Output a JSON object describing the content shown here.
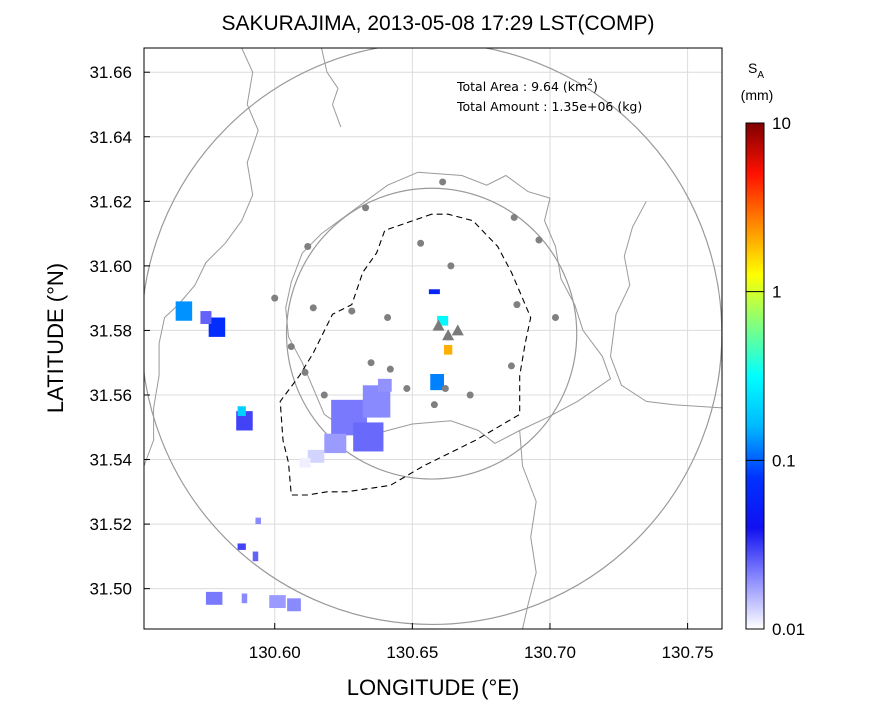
{
  "title": "SAKURAJIMA, 2013-05-08 17:29 LST(COMP)",
  "info": {
    "area_label": "Total Area   : 9.64 (km",
    "area_sup": "2",
    "area_close": ")",
    "amount_label": "Total Amount : 1.35e+06 (kg)"
  },
  "axes": {
    "xlabel": "LONGITUDE (°E)",
    "ylabel": "LATITUDE (°N)",
    "xlim": [
      130.5525,
      130.7625
    ],
    "ylim": [
      31.4875,
      31.6675
    ],
    "xticks": [
      {
        "value": 130.6,
        "label": "130.60"
      },
      {
        "value": 130.65,
        "label": "130.65"
      },
      {
        "value": 130.7,
        "label": "130.70"
      },
      {
        "value": 130.75,
        "label": "130.75"
      }
    ],
    "yticks": [
      {
        "value": 31.5,
        "label": "31.50"
      },
      {
        "value": 31.52,
        "label": "31.52"
      },
      {
        "value": 31.54,
        "label": "31.54"
      },
      {
        "value": 31.56,
        "label": "31.56"
      },
      {
        "value": 31.58,
        "label": "31.58"
      },
      {
        "value": 31.6,
        "label": "31.60"
      },
      {
        "value": 31.62,
        "label": "31.62"
      },
      {
        "value": 31.64,
        "label": "31.64"
      },
      {
        "value": 31.66,
        "label": "31.66"
      }
    ],
    "grid": true
  },
  "colorbar": {
    "symbol": "S",
    "subscript": "A",
    "unit": "(mm)",
    "scale": "log",
    "range": [
      0.01,
      10
    ],
    "ticks": [
      {
        "value": 10,
        "label": "10"
      },
      {
        "value": 1,
        "label": "1"
      },
      {
        "value": 0.1,
        "label": "0.1"
      },
      {
        "value": 0.01,
        "label": "0.01"
      }
    ],
    "colors": [
      "#ffffff",
      "#8a8aff",
      "#1010f0",
      "#0033ff",
      "#00b8ff",
      "#00ffff",
      "#80ff80",
      "#ffff00",
      "#ff8800",
      "#ff1100",
      "#800000"
    ]
  },
  "map_data": {
    "radar_center": [
      130.657,
      31.579
    ],
    "range_rings_km": [
      5,
      10
    ],
    "stations": [
      [
        130.661,
        31.626
      ],
      [
        130.633,
        31.618
      ],
      [
        130.687,
        31.615
      ],
      [
        130.612,
        31.606
      ],
      [
        130.653,
        31.607
      ],
      [
        130.696,
        31.608
      ],
      [
        130.664,
        31.6
      ],
      [
        130.6,
        31.59
      ],
      [
        130.688,
        31.588
      ],
      [
        130.614,
        31.587
      ],
      [
        130.628,
        31.586
      ],
      [
        130.641,
        31.584
      ],
      [
        130.702,
        31.584
      ],
      [
        130.606,
        31.575
      ],
      [
        130.686,
        31.569
      ],
      [
        130.635,
        31.57
      ],
      [
        130.642,
        31.568
      ],
      [
        130.648,
        31.562
      ],
      [
        130.662,
        31.562
      ],
      [
        130.671,
        31.56
      ],
      [
        130.658,
        31.557
      ],
      [
        130.618,
        31.56
      ],
      [
        130.611,
        31.567
      ]
    ],
    "volcano_peaks": [
      [
        130.6595,
        31.5815
      ],
      [
        130.663,
        31.5785
      ],
      [
        130.6665,
        31.58
      ]
    ],
    "restricted_area": [
      [
        130.657,
        31.616
      ],
      [
        130.64,
        31.611
      ],
      [
        130.637,
        31.604
      ],
      [
        130.632,
        31.598
      ],
      [
        130.628,
        31.588
      ],
      [
        130.621,
        31.585
      ],
      [
        130.614,
        31.573
      ],
      [
        130.609,
        31.566
      ],
      [
        130.602,
        31.558
      ],
      [
        130.603,
        31.546
      ],
      [
        130.605,
        31.539
      ],
      [
        130.606,
        31.529
      ],
      [
        130.612,
        31.529
      ],
      [
        130.619,
        31.53
      ],
      [
        130.626,
        31.53
      ],
      [
        130.642,
        31.532
      ],
      [
        130.654,
        31.538
      ],
      [
        130.673,
        31.546
      ],
      [
        130.687,
        31.553
      ],
      [
        130.689,
        31.554
      ],
      [
        130.689,
        31.566
      ],
      [
        130.691,
        31.576
      ],
      [
        130.693,
        31.584
      ],
      [
        130.69,
        31.59
      ],
      [
        130.686,
        31.598
      ],
      [
        130.681,
        31.606
      ],
      [
        130.672,
        31.614
      ],
      [
        130.663,
        31.616
      ]
    ],
    "coastlines": [
      [
        [
          130.652,
          31.629
        ],
        [
          130.668,
          31.628
        ],
        [
          130.677,
          31.625
        ],
        [
          130.684,
          31.628
        ],
        [
          130.692,
          31.623
        ],
        [
          130.7,
          31.621
        ],
        [
          130.698,
          31.614
        ],
        [
          130.702,
          31.606
        ],
        [
          130.704,
          31.596
        ],
        [
          130.709,
          31.588
        ],
        [
          130.712,
          31.58
        ],
        [
          130.719,
          31.572
        ],
        [
          130.722,
          31.565
        ],
        [
          130.71,
          31.558
        ],
        [
          130.699,
          31.553
        ],
        [
          130.689,
          31.549
        ],
        [
          130.68,
          31.545
        ],
        [
          130.674,
          31.549
        ],
        [
          130.664,
          31.552
        ],
        [
          130.65,
          31.551
        ],
        [
          130.641,
          31.549
        ],
        [
          130.633,
          31.547
        ],
        [
          130.625,
          31.55
        ],
        [
          130.618,
          31.554
        ],
        [
          130.614,
          31.562
        ],
        [
          130.61,
          31.57
        ],
        [
          130.605,
          31.578
        ],
        [
          130.604,
          31.587
        ],
        [
          130.606,
          31.595
        ],
        [
          130.61,
          31.604
        ],
        [
          130.617,
          31.61
        ],
        [
          130.625,
          31.615
        ],
        [
          130.633,
          31.62
        ],
        [
          130.641,
          31.625
        ],
        [
          130.652,
          31.629
        ]
      ],
      [
        [
          130.588,
          31.6675
        ],
        [
          130.592,
          31.66
        ],
        [
          130.59,
          31.65
        ],
        [
          130.594,
          31.642
        ],
        [
          130.59,
          31.632
        ],
        [
          130.592,
          31.622
        ],
        [
          130.588,
          31.614
        ],
        [
          130.582,
          31.607
        ],
        [
          130.575,
          31.601
        ],
        [
          130.571,
          31.594
        ],
        [
          130.565,
          31.588
        ],
        [
          130.56,
          31.584
        ],
        [
          130.558,
          31.576
        ],
        [
          130.558,
          31.566
        ],
        [
          130.556,
          31.556
        ],
        [
          130.556,
          31.546
        ],
        [
          130.5525,
          31.538
        ]
      ],
      [
        [
          130.617,
          31.6675
        ],
        [
          130.619,
          31.66
        ],
        [
          130.623,
          31.655
        ],
        [
          130.621,
          31.65
        ],
        [
          130.624,
          31.643
        ]
      ],
      [
        [
          130.735,
          31.62
        ],
        [
          130.73,
          31.612
        ],
        [
          130.727,
          31.603
        ],
        [
          130.729,
          31.594
        ],
        [
          130.724,
          31.585
        ],
        [
          130.722,
          31.572
        ],
        [
          130.726,
          31.563
        ],
        [
          130.735,
          31.558
        ],
        [
          130.745,
          31.557
        ],
        [
          130.7625,
          31.556
        ]
      ],
      [
        [
          130.689,
          31.549
        ],
        [
          130.69,
          31.538
        ],
        [
          130.695,
          31.527
        ],
        [
          130.693,
          31.516
        ],
        [
          130.695,
          31.505
        ],
        [
          130.692,
          31.495
        ],
        [
          130.69,
          31.4875
        ]
      ]
    ],
    "echo_cells": [
      {
        "lon": 130.627,
        "lat": 31.553,
        "w": 0.013,
        "h": 0.011,
        "sa": 0.022
      },
      {
        "lon": 130.637,
        "lat": 31.558,
        "w": 0.01,
        "h": 0.01,
        "sa": 0.02
      },
      {
        "lon": 130.634,
        "lat": 31.547,
        "w": 0.011,
        "h": 0.009,
        "sa": 0.024
      },
      {
        "lon": 130.622,
        "lat": 31.545,
        "w": 0.008,
        "h": 0.006,
        "sa": 0.018
      },
      {
        "lon": 130.615,
        "lat": 31.541,
        "w": 0.006,
        "h": 0.004,
        "sa": 0.013
      },
      {
        "lon": 130.611,
        "lat": 31.539,
        "w": 0.004,
        "h": 0.003,
        "sa": 0.011
      },
      {
        "lon": 130.64,
        "lat": 31.563,
        "w": 0.005,
        "h": 0.004,
        "sa": 0.019
      },
      {
        "lon": 130.579,
        "lat": 31.581,
        "w": 0.006,
        "h": 0.006,
        "sa": 0.07
      },
      {
        "lon": 130.575,
        "lat": 31.584,
        "w": 0.004,
        "h": 0.004,
        "sa": 0.025
      },
      {
        "lon": 130.567,
        "lat": 31.586,
        "w": 0.006,
        "h": 0.006,
        "sa": 0.13
      },
      {
        "lon": 130.589,
        "lat": 31.552,
        "w": 0.006,
        "h": 0.006,
        "sa": 0.03
      },
      {
        "lon": 130.588,
        "lat": 31.555,
        "w": 0.003,
        "h": 0.003,
        "sa": 0.2
      },
      {
        "lon": 130.659,
        "lat": 31.564,
        "w": 0.005,
        "h": 0.005,
        "sa": 0.12
      },
      {
        "lon": 130.661,
        "lat": 31.583,
        "w": 0.004,
        "h": 0.003,
        "sa": 0.3
      },
      {
        "lon": 130.663,
        "lat": 31.574,
        "w": 0.003,
        "h": 0.003,
        "sa": 2.0
      },
      {
        "lon": 130.663,
        "lat": 31.578,
        "w": 0.002,
        "h": 0.002,
        "sa": 5.0
      },
      {
        "lon": 130.658,
        "lat": 31.592,
        "w": 0.004,
        "h": 0.0015,
        "sa": 0.06
      },
      {
        "lon": 130.588,
        "lat": 31.513,
        "w": 0.003,
        "h": 0.002,
        "sa": 0.03
      },
      {
        "lon": 130.594,
        "lat": 31.521,
        "w": 0.002,
        "h": 0.002,
        "sa": 0.02
      },
      {
        "lon": 130.593,
        "lat": 31.51,
        "w": 0.002,
        "h": 0.003,
        "sa": 0.025
      },
      {
        "lon": 130.578,
        "lat": 31.497,
        "w": 0.006,
        "h": 0.004,
        "sa": 0.022
      },
      {
        "lon": 130.589,
        "lat": 31.497,
        "w": 0.002,
        "h": 0.003,
        "sa": 0.02
      },
      {
        "lon": 130.601,
        "lat": 31.496,
        "w": 0.006,
        "h": 0.004,
        "sa": 0.018
      },
      {
        "lon": 130.607,
        "lat": 31.495,
        "w": 0.005,
        "h": 0.004,
        "sa": 0.02
      }
    ]
  }
}
